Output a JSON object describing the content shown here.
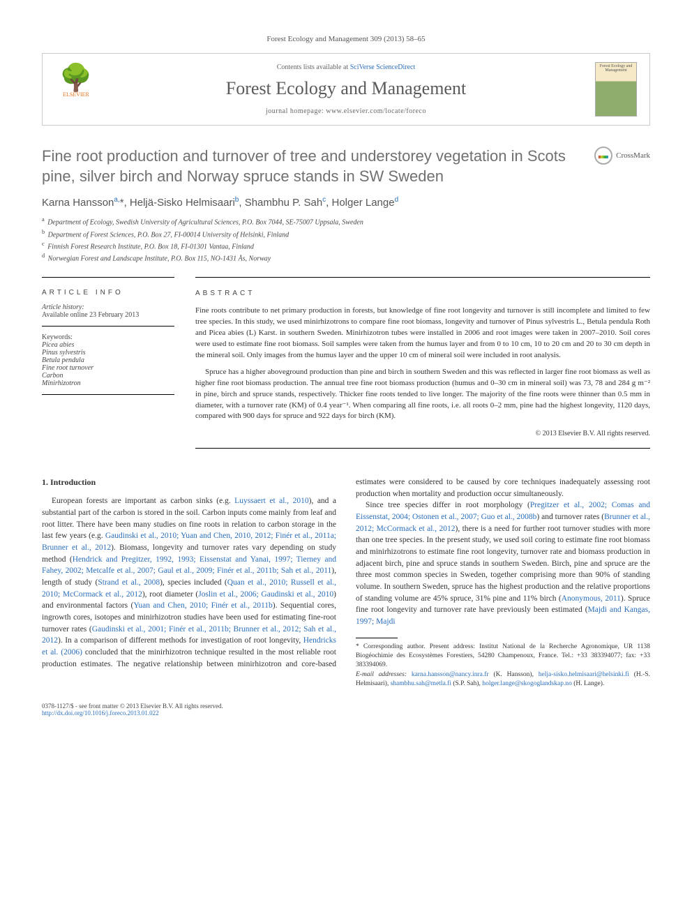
{
  "journal_ref": "Forest Ecology and Management 309 (2013) 58–65",
  "header": {
    "contents_prefix": "Contents lists available at ",
    "contents_link": "SciVerse ScienceDirect",
    "journal_name": "Forest Ecology and Management",
    "homepage_prefix": "journal homepage: ",
    "homepage_url": "www.elsevier.com/locate/foreco",
    "publisher": "ELSEVIER",
    "cover_text": "Forest Ecology and Management"
  },
  "crossmark_label": "CrossMark",
  "title": "Fine root production and turnover of tree and understorey vegetation in Scots pine, silver birch and Norway spruce stands in SW Sweden",
  "authors_html": "Karna Hansson<sup>a,</sup>*, Heljä-Sisko Helmisaari<sup>b</sup>, Shambhu P. Sah<sup>c</sup>, Holger Lange<sup>d</sup>",
  "affiliations": [
    {
      "sup": "a",
      "text": "Department of Ecology, Swedish University of Agricultural Sciences, P.O. Box 7044, SE-75007 Uppsala, Sweden"
    },
    {
      "sup": "b",
      "text": "Department of Forest Sciences, P.O. Box 27, FI-00014 University of Helsinki, Finland"
    },
    {
      "sup": "c",
      "text": "Finnish Forest Research Institute, P.O. Box 18, FI-01301 Vantaa, Finland"
    },
    {
      "sup": "d",
      "text": "Norwegian Forest and Landscape Institute, P.O. Box 115, NO-1431 Ås, Norway"
    }
  ],
  "article_info": {
    "heading": "ARTICLE INFO",
    "history_label": "Article history:",
    "history_text": "Available online 23 February 2013",
    "keywords_label": "Keywords:",
    "keywords": [
      "Picea abies",
      "Pinus sylvestris",
      "Betula pendula",
      "Fine root turnover",
      "Carbon",
      "Minirhizotron"
    ]
  },
  "abstract": {
    "heading": "ABSTRACT",
    "p1": "Fine roots contribute to net primary production in forests, but knowledge of fine root longevity and turnover is still incomplete and limited to few tree species. In this study, we used minirhizotrons to compare fine root biomass, longevity and turnover of Pinus sylvestris L., Betula pendula Roth and Picea abies (L) Karst. in southern Sweden. Minirhizotron tubes were installed in 2006 and root images were taken in 2007–2010. Soil cores were used to estimate fine root biomass. Soil samples were taken from the humus layer and from 0 to 10 cm, 10 to 20 cm and 20 to 30 cm depth in the mineral soil. Only images from the humus layer and the upper 10 cm of mineral soil were included in root analysis.",
    "p2": "Spruce has a higher aboveground production than pine and birch in southern Sweden and this was reflected in larger fine root biomass as well as higher fine root biomass production. The annual tree fine root biomass production (humus and 0–30 cm in mineral soil) was 73, 78 and 284 g m⁻² in pine, birch and spruce stands, respectively. Thicker fine roots tended to live longer. The majority of the fine roots were thinner than 0.5 mm in diameter, with a turnover rate (KM) of 0.4 year⁻¹. When comparing all fine roots, i.e. all roots 0–2 mm, pine had the highest longevity, 1120 days, compared with 900 days for spruce and 922 days for birch (KM).",
    "copyright": "© 2013 Elsevier B.V. All rights reserved."
  },
  "intro": {
    "heading": "1. Introduction",
    "p1_pre": "European forests are important as carbon sinks (e.g. ",
    "p1_l1": "Luyssaert et al., 2010",
    "p1_m1": "), and a substantial part of the carbon is stored in the soil. Carbon inputs come mainly from leaf and root litter. There have been many studies on fine roots in relation to carbon storage in the last few years (e.g. ",
    "p1_l2": "Gaudinski et al., 2010; Yuan and Chen, 2010, 2012; Finér et al., 2011a; Brunner et al., 2012",
    "p1_m2": "). Biomass, longevity and turnover rates vary depending on study method (",
    "p1_l3": "Hendrick and Pregitzer, 1992, 1993; Eissenstat and Yanai, 1997; Tierney and Fahey, 2002; Metcalfe et al., 2007; Gaul et al., 2009; Finér et al., 2011b; Sah et al., 2011",
    "p1_m3": "), length of study (",
    "p1_l4": "Strand et al., 2008",
    "p1_m4": "), species included (",
    "p1_l5": "Quan et al., 2010; Russell et al., 2010; McCormack et al., 2012",
    "p1_m5": "), root diameter (",
    "p1_l6": "Joslin et al., 2006; Gaudinski et al., 2010",
    "p1_m6": ") and environmental factors (",
    "p1_l7": "Yuan and Chen, 2010; Finér et al., 2011b",
    "p1_m7": "). Sequential cores, ingrowth cores, isotopes and mini",
    "p2_pre": "rhizotron studies have been used for estimating fine-root turnover rates (",
    "p2_l1": "Gaudinski et al., 2001; Finér et al., 2011b; Brunner et al., 2012; Sah et al., 2012",
    "p2_m1": "). In a comparison of different methods for investigation of root longevity, ",
    "p2_l2": "Hendricks et al. (2006)",
    "p2_m2": " concluded that the minirhizotron technique resulted in the most reliable root production estimates. The negative relationship between minirhizotron and core-based estimates were considered to be caused by core techniques inadequately assessing root production when mortality and production occur simultaneously.",
    "p3_pre": "Since tree species differ in root morphology (",
    "p3_l1": "Pregitzer et al., 2002; Comas and Eissenstat, 2004; Ostonen et al., 2007; Guo et al., 2008b",
    "p3_m1": ") and turnover rates (",
    "p3_l2": "Brunner et al., 2012; McCormack et al., 2012",
    "p3_m2": "), there is a need for further root turnover studies with more than one tree species. In the present study, we used soil coring to estimate fine root biomass and minirhizotrons to estimate fine root longevity, turnover rate and biomass production in adjacent birch, pine and spruce stands in southern Sweden. Birch, pine and spruce are the three most common species in Sweden, together comprising more than 90% of standing volume. In southern Sweden, spruce has the highest production and the relative proportions of standing volume are 45% spruce, 31% pine and 11% birch (",
    "p3_l3": "Anonymous, 2011",
    "p3_m3": "). Spruce fine root longevity and turnover rate have previously been estimated (",
    "p3_l4": "Majdi and Kangas, 1997; Majdi"
  },
  "footnotes": {
    "corr_label": "* Corresponding author. Present address: Institut National de la Recherche Agronomique, UR 1138 Biogéochimie des Ecosystèmes Forestiers, 54280 Champenoux, France. Tel.: +33 383394077; fax: +33 383394069.",
    "email_label": "E-mail addresses: ",
    "emails": [
      {
        "addr": "karna.hansson@nancy.inra.fr",
        "who": " (K. Hansson), "
      },
      {
        "addr": "helja-sisko.helmisaari@helsinki.fi",
        "who": " (H.-S. Helmisaari), "
      },
      {
        "addr": "shambhu.sah@metla.fi",
        "who": " (S.P. Sah), "
      },
      {
        "addr": "holger.lange@skogoglandskap.no",
        "who": " (H. Lange)."
      }
    ]
  },
  "footer": {
    "left_line1": "0378-1127/$ - see front matter © 2013 Elsevier B.V. All rights reserved.",
    "doi": "http://dx.doi.org/10.1016/j.foreco.2013.01.022"
  }
}
